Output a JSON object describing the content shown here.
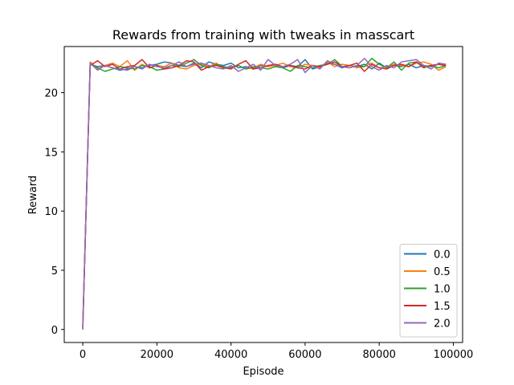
{
  "chart_data": {
    "type": "line",
    "title": "Rewards from training with tweaks in masscart",
    "xlabel": "Episode",
    "ylabel": "Reward",
    "xlim": [
      -5000,
      102500
    ],
    "ylim": [
      -1.1,
      23.9
    ],
    "xticks": [
      0,
      20000,
      40000,
      60000,
      80000,
      100000
    ],
    "yticks": [
      0,
      5,
      10,
      15,
      20
    ],
    "legend_position": "lower right",
    "grid": false,
    "x": [
      0,
      2000,
      4000,
      6000,
      8000,
      10000,
      12000,
      14000,
      16000,
      18000,
      20000,
      22000,
      24000,
      26000,
      28000,
      30000,
      32000,
      34000,
      36000,
      38000,
      40000,
      42000,
      44000,
      46000,
      48000,
      50000,
      52000,
      54000,
      56000,
      58000,
      60000,
      62000,
      64000,
      66000,
      68000,
      70000,
      72000,
      74000,
      76000,
      78000,
      80000,
      82000,
      84000,
      86000,
      88000,
      90000,
      92000,
      94000,
      96000,
      98000
    ],
    "series": [
      {
        "name": "0.0",
        "color": "#1f77b4",
        "values": [
          0.2,
          22.4,
          22.2,
          22.3,
          22.1,
          21.9,
          22.0,
          22.2,
          22.1,
          22.3,
          22.4,
          22.6,
          22.5,
          22.3,
          22.2,
          22.5,
          22.1,
          22.6,
          22.4,
          22.3,
          22.5,
          22.1,
          22.2,
          22.0,
          22.3,
          22.2,
          22.4,
          22.1,
          22.3,
          22.2,
          22.8,
          22.0,
          22.2,
          22.5,
          22.4,
          22.1,
          22.3,
          22.2,
          22.4,
          22.0,
          22.5,
          22.1,
          22.3,
          22.2,
          22.4,
          22.1,
          22.3,
          22.2,
          22.4,
          22.3
        ]
      },
      {
        "name": "0.5",
        "color": "#ff7f0e",
        "values": [
          0.1,
          22.6,
          22.0,
          22.3,
          22.5,
          22.2,
          22.7,
          21.9,
          22.4,
          22.1,
          22.3,
          22.2,
          22.5,
          22.1,
          22.0,
          22.3,
          22.4,
          22.2,
          22.5,
          22.1,
          22.2,
          22.3,
          22.0,
          22.1,
          22.4,
          22.2,
          22.3,
          22.5,
          22.2,
          22.1,
          22.4,
          22.3,
          22.1,
          22.6,
          22.2,
          22.4,
          22.3,
          22.1,
          22.2,
          22.5,
          22.1,
          22.2,
          22.4,
          22.3,
          22.2,
          22.5,
          22.6,
          22.4,
          21.9,
          22.2
        ]
      },
      {
        "name": "1.0",
        "color": "#2ca02c",
        "values": [
          0.0,
          22.5,
          22.1,
          21.8,
          22.0,
          22.2,
          22.1,
          22.0,
          22.3,
          22.2,
          21.9,
          22.0,
          22.3,
          22.2,
          22.5,
          22.8,
          22.3,
          22.1,
          22.4,
          22.2,
          22.1,
          22.3,
          22.0,
          22.2,
          22.1,
          22.0,
          22.2,
          22.1,
          21.8,
          22.3,
          22.2,
          22.1,
          22.3,
          22.4,
          22.8,
          22.2,
          22.1,
          22.3,
          22.2,
          22.9,
          22.4,
          22.1,
          22.6,
          21.9,
          22.5,
          22.6,
          22.2,
          22.3,
          22.1,
          22.3
        ]
      },
      {
        "name": "1.5",
        "color": "#d62728",
        "values": [
          0.3,
          22.3,
          22.7,
          22.2,
          22.4,
          22.0,
          22.2,
          22.3,
          22.8,
          22.1,
          22.3,
          22.0,
          22.1,
          22.3,
          22.7,
          22.6,
          21.9,
          22.2,
          22.3,
          22.1,
          22.0,
          22.4,
          22.7,
          22.0,
          22.1,
          22.3,
          22.4,
          22.2,
          22.3,
          22.1,
          22.0,
          22.3,
          22.2,
          22.4,
          22.6,
          22.2,
          22.3,
          22.5,
          21.8,
          22.4,
          22.1,
          22.0,
          22.3,
          22.4,
          22.2,
          22.6,
          22.1,
          22.3,
          22.4,
          22.3
        ]
      },
      {
        "name": "2.0",
        "color": "#9467bd",
        "values": [
          0.0,
          22.5,
          21.9,
          22.3,
          22.1,
          22.0,
          21.9,
          22.2,
          22.0,
          22.4,
          22.2,
          22.1,
          22.3,
          22.6,
          22.2,
          22.4,
          22.5,
          22.3,
          22.1,
          22.0,
          22.3,
          21.8,
          22.1,
          22.4,
          21.9,
          22.8,
          22.3,
          22.2,
          22.4,
          22.8,
          21.7,
          22.3,
          22.0,
          22.7,
          22.4,
          22.2,
          22.1,
          22.3,
          22.9,
          22.2,
          21.9,
          22.3,
          22.1,
          22.6,
          22.7,
          22.8,
          22.3,
          22.0,
          22.5,
          22.4
        ]
      }
    ]
  }
}
